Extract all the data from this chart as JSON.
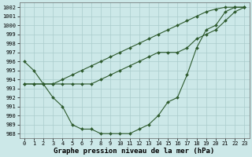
{
  "xlabel": "Graphe pression niveau de la mer (hPa)",
  "xlim": [
    -0.5,
    23.5
  ],
  "ylim": [
    987.5,
    1002.5
  ],
  "yticks": [
    988,
    989,
    990,
    991,
    992,
    993,
    994,
    995,
    996,
    997,
    998,
    999,
    1000,
    1001,
    1002
  ],
  "xticks": [
    0,
    1,
    2,
    3,
    4,
    5,
    6,
    7,
    8,
    9,
    10,
    11,
    12,
    13,
    14,
    15,
    16,
    17,
    18,
    19,
    20,
    21,
    22,
    23
  ],
  "bg_color": "#cce8e8",
  "line_color": "#2d5a2d",
  "grid_color": "#aacccc",
  "line1_y": [
    996.0,
    995.0,
    993.5,
    992.0,
    991.0,
    989.0,
    988.5,
    988.5,
    988.0,
    988.0,
    988.0,
    988.0,
    988.5,
    989.0,
    990.0,
    991.5,
    992.0,
    994.5,
    997.5,
    999.5,
    1000.0,
    1001.5,
    1002.0,
    1002.0
  ],
  "line2_y": [
    993.5,
    993.5,
    993.5,
    993.5,
    993.5,
    993.5,
    993.5,
    993.5,
    994.0,
    994.5,
    995.0,
    995.5,
    996.0,
    996.5,
    997.0,
    997.0,
    997.0,
    997.5,
    998.5,
    999.0,
    999.5,
    1000.5,
    1001.5,
    1002.0
  ],
  "line3_y": [
    993.5,
    993.5,
    993.5,
    993.5,
    994.0,
    994.5,
    995.0,
    995.5,
    996.0,
    996.5,
    997.0,
    997.5,
    998.0,
    998.5,
    999.0,
    999.5,
    1000.0,
    1000.5,
    1001.0,
    1001.5,
    1001.8,
    1002.0,
    1002.0,
    1002.0
  ],
  "markersize": 2.0,
  "linewidth": 0.8,
  "xlabel_fontsize": 6.5,
  "tick_fontsize": 5.0
}
